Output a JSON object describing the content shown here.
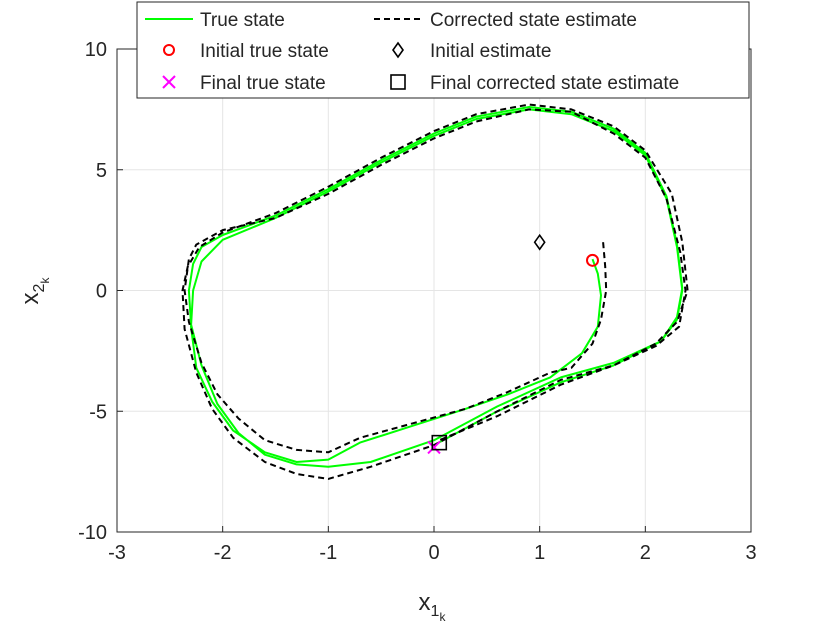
{
  "chart_data": {
    "type": "line",
    "xlabel": {
      "base": "x",
      "sub": "1",
      "subsub": "k"
    },
    "ylabel": {
      "base": "x",
      "sub": "2",
      "subsub": "k"
    },
    "xlim": [
      -3,
      3
    ],
    "ylim": [
      -10,
      10
    ],
    "xticks": [
      -3,
      -2,
      -1,
      0,
      1,
      2,
      3
    ],
    "yticks": [
      -10,
      -5,
      0,
      5,
      10
    ],
    "grid": true,
    "legend_position": "top",
    "colors": {
      "true_state": "#00ff00",
      "estimate": "#000000",
      "initial_true": "#ff0000",
      "final_true": "#ff00ff",
      "markers": "#000000"
    },
    "legend": [
      {
        "key": "true_state",
        "label": "True state"
      },
      {
        "key": "estimate",
        "label": "Corrected state estimate"
      },
      {
        "key": "initial_true",
        "label": "Initial true state"
      },
      {
        "key": "initial_estimate",
        "label": "Initial estimate"
      },
      {
        "key": "final_true",
        "label": "Final true state"
      },
      {
        "key": "final_estimate",
        "label": "Final corrected state estimate"
      }
    ],
    "series": [
      {
        "key": "true_state",
        "style": "solid",
        "x": [
          1.5,
          1.55,
          1.58,
          1.55,
          1.4,
          1.1,
          0.7,
          0.3,
          -0.2,
          -0.7,
          -1.0,
          -1.3,
          -1.6,
          -1.9,
          -2.1,
          -2.25,
          -2.3,
          -2.28,
          -2.2,
          -2.0,
          -1.5,
          -1.0,
          -0.5,
          0.0,
          0.4,
          0.9,
          1.3,
          1.7,
          2.0,
          2.2,
          2.3,
          2.35,
          2.3,
          2.15,
          1.7,
          1.2,
          0.6,
          0.0,
          -0.6,
          -1.0,
          -1.3,
          -1.6,
          -1.85,
          -2.05,
          -2.2,
          -2.3,
          -2.32,
          -2.28,
          -2.2,
          -2.0,
          -1.5,
          -1.0,
          -0.5,
          0.0,
          0.4,
          0.9,
          1.3,
          1.7,
          2.0,
          2.2,
          2.3,
          2.35,
          2.3,
          2.15,
          1.7,
          1.2,
          0.6,
          0.0
        ],
        "y": [
          1.3,
          0.7,
          -0.2,
          -1.5,
          -2.6,
          -3.6,
          -4.3,
          -4.9,
          -5.6,
          -6.3,
          -7.0,
          -7.1,
          -6.7,
          -5.8,
          -4.6,
          -3.2,
          -1.5,
          0.0,
          1.2,
          2.1,
          3.0,
          4.1,
          5.3,
          6.4,
          7.1,
          7.5,
          7.3,
          6.6,
          5.6,
          3.8,
          1.8,
          0.0,
          -1.2,
          -2.1,
          -3.0,
          -3.6,
          -4.8,
          -6.2,
          -7.1,
          -7.3,
          -7.2,
          -6.8,
          -5.9,
          -4.7,
          -3.1,
          -1.4,
          0.0,
          1.1,
          1.8,
          2.3,
          3.1,
          4.2,
          5.4,
          6.5,
          7.2,
          7.6,
          7.4,
          6.7,
          5.7,
          3.9,
          1.9,
          0.1,
          -1.1,
          -2.1,
          -3.1,
          -3.8,
          -5.0,
          -6.4
        ]
      },
      {
        "key": "estimate",
        "style": "dashed",
        "x": [
          1.6,
          1.62,
          1.63,
          1.58,
          1.5,
          1.3,
          1.1,
          0.7,
          0.3,
          -0.2,
          -0.7,
          -1.0,
          -1.3,
          -1.6,
          -1.85,
          -2.05,
          -2.2,
          -2.32,
          -2.36,
          -2.32,
          -2.25,
          -2.0,
          -1.5,
          -1.0,
          -0.5,
          0.0,
          0.4,
          0.9,
          1.3,
          1.7,
          2.0,
          2.2,
          2.33,
          2.38,
          2.32,
          2.1,
          1.7,
          1.2,
          0.6,
          0.0,
          -0.6,
          -1.0,
          -1.3,
          -1.6,
          -1.9,
          -2.1,
          -2.25,
          -2.36,
          -2.38,
          -2.33,
          -2.22,
          -2.0,
          -1.5,
          -1.0,
          -0.5,
          0.0,
          0.4,
          0.9,
          1.3,
          1.7,
          2.0,
          2.25,
          2.35,
          2.4,
          2.3,
          2.1,
          1.7,
          1.2,
          0.6,
          0.05
        ],
        "y": [
          2.0,
          1.0,
          0.0,
          -1.2,
          -2.2,
          -3.2,
          -3.4,
          -4.2,
          -4.9,
          -5.5,
          -6.1,
          -6.7,
          -6.6,
          -6.2,
          -5.3,
          -4.3,
          -3.0,
          -1.3,
          0.0,
          1.3,
          1.9,
          2.5,
          3.0,
          4.0,
          5.2,
          6.3,
          7.0,
          7.5,
          7.4,
          6.5,
          5.5,
          3.8,
          1.6,
          0.0,
          -1.5,
          -2.3,
          -3.1,
          -3.7,
          -5.0,
          -6.4,
          -7.3,
          -7.8,
          -7.6,
          -7.1,
          -6.1,
          -4.9,
          -3.4,
          -1.6,
          0.0,
          1.0,
          1.8,
          2.4,
          3.2,
          4.3,
          5.5,
          6.6,
          7.3,
          7.7,
          7.5,
          6.8,
          5.8,
          4.0,
          2.0,
          0.0,
          -1.3,
          -2.2,
          -3.1,
          -3.9,
          -5.2,
          -6.2
        ]
      }
    ],
    "markers": [
      {
        "key": "initial_true",
        "symbol": "circle",
        "x": 1.5,
        "y": 1.25
      },
      {
        "key": "initial_estimate",
        "symbol": "diamond",
        "x": 1.0,
        "y": 2.0
      },
      {
        "key": "final_true",
        "symbol": "x",
        "x": 0.0,
        "y": -6.5
      },
      {
        "key": "final_estimate",
        "symbol": "square",
        "x": 0.05,
        "y": -6.3
      }
    ]
  }
}
